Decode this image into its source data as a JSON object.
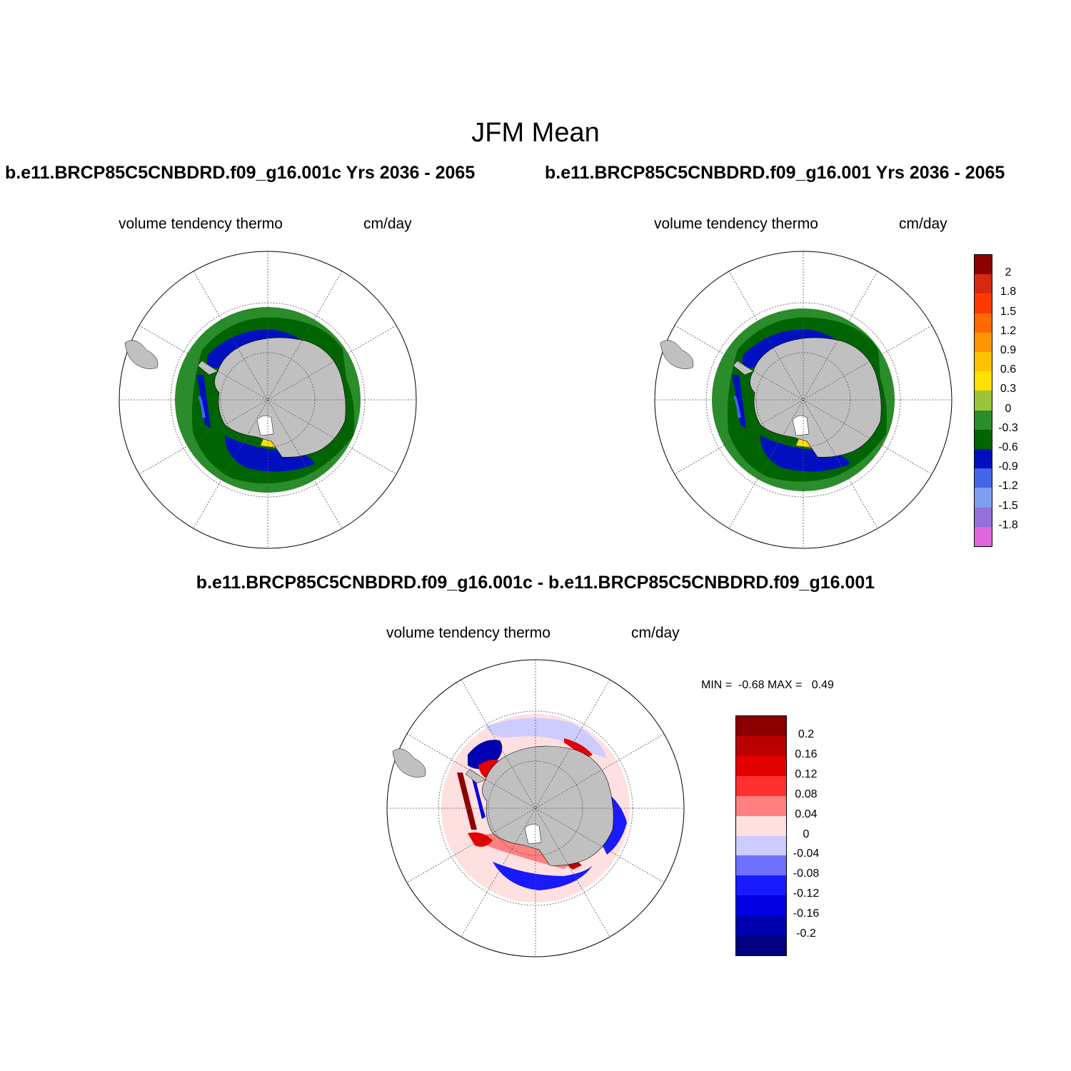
{
  "main_title": "JFM Mean",
  "panels": [
    {
      "title": "b.e11.BRCP85C5CNBDRD.f09_g16.001c  Yrs 2036 - 2065",
      "variable": "volume tendency thermo",
      "units": "cm/day"
    },
    {
      "title": "b.e11.BRCP85C5CNBDRD.f09_g16.001  Yrs 2036 - 2065",
      "variable": "volume tendency thermo",
      "units": "cm/day"
    }
  ],
  "diff_panel": {
    "title": "b.e11.BRCP85C5CNBDRD.f09_g16.001c - b.e11.BRCP85C5CNBDRD.f09_g16.001",
    "variable": "volume tendency thermo",
    "units": "cm/day",
    "min_label": "MIN =",
    "min_value": "-0.68",
    "max_label": "MAX =",
    "max_value": "0.49"
  },
  "colorbars": {
    "main": {
      "labels": [
        "2",
        "1.8",
        "1.5",
        "1.2",
        "0.9",
        "0.6",
        "0.3",
        "0",
        "-0.3",
        "-0.6",
        "-0.9",
        "-1.2",
        "-1.5",
        "-1.8"
      ],
      "colors": [
        "#8b0000",
        "#d62a10",
        "#ff3a00",
        "#ff6a00",
        "#ff9500",
        "#ffc200",
        "#ffe000",
        "#9ac43a",
        "#2a8c2a",
        "#006400",
        "#0010c0",
        "#4565e8",
        "#7e9ef0",
        "#9370db",
        "#e066e0"
      ]
    },
    "diff": {
      "labels": [
        "0.2",
        "0.16",
        "0.12",
        "0.08",
        "0.04",
        "0",
        "-0.04",
        "-0.08",
        "-0.12",
        "-0.16",
        "-0.2"
      ],
      "colors": [
        "#8b0000",
        "#bb0000",
        "#e50000",
        "#ff3030",
        "#ff8080",
        "#ffe0e0",
        "#ccccff",
        "#7070ff",
        "#1a1aff",
        "#0000e0",
        "#0000b0",
        "#000080"
      ]
    }
  },
  "colors": {
    "land": "#c0c0c0",
    "ice_free": "#ffffff"
  }
}
